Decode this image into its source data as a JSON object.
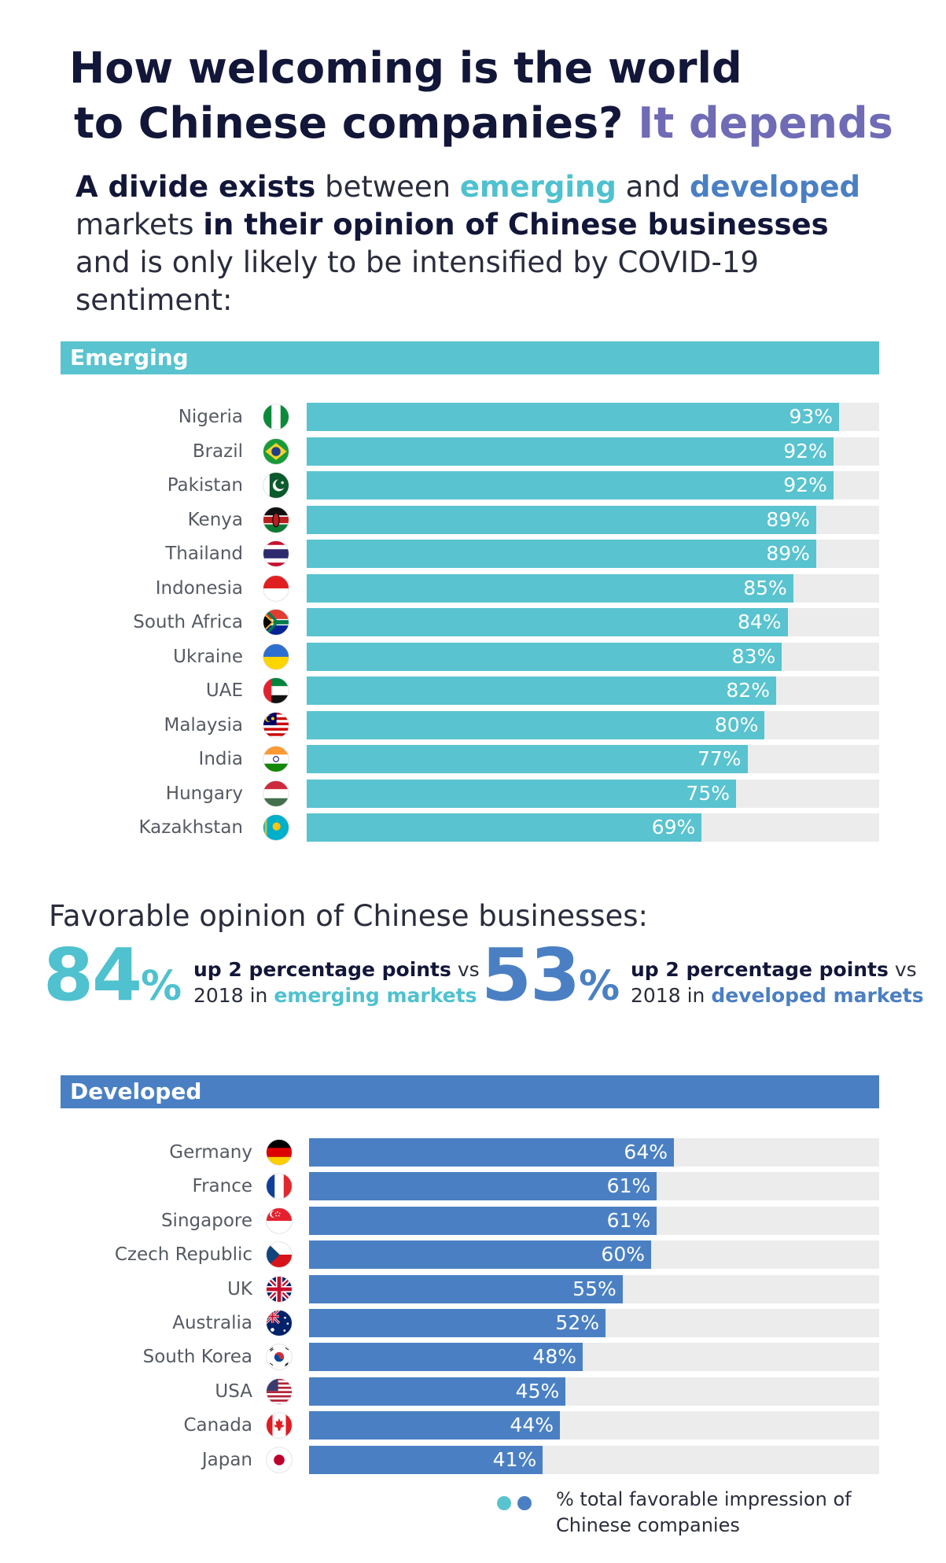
{
  "title": {
    "line1": "How welcoming is the world",
    "line2": "to Chinese companies?",
    "accent": "It depends"
  },
  "intro": {
    "p1_bold": "A divide exists",
    "p1_text": " between ",
    "emerging": "emerging",
    "and": " and ",
    "developed": "developed",
    "p2_text": "markets ",
    "p2_bold": "in their opinion of Chinese businesses",
    "p3_text": "and is only likely to be intensified by COVID-19",
    "p4_text": "sentiment:"
  },
  "sections": {
    "emerging_label": "Emerging",
    "developed_label": "Developed"
  },
  "favorable": {
    "title": "Favorable opinion of Chinese businesses:",
    "emerging": {
      "value": "84",
      "unit": "%",
      "bold": "up 2 percentage points",
      "vs": " vs",
      "line2": "2018 in ",
      "market": "emerging markets"
    },
    "developed": {
      "value": "53",
      "unit": "%",
      "bold": "up 2 percentage points",
      "vs": " vs",
      "line2": "2018 in ",
      "market": "developed markets"
    }
  },
  "legend": {
    "text": "% total favorable impression of Chinese companies"
  },
  "colors": {
    "emerging": "#59c3cf",
    "developed": "#4a80c3",
    "track": "#ececec",
    "title": "#121638",
    "accent": "#6f6bb5"
  },
  "chart_data": [
    {
      "type": "bar",
      "title": "Emerging",
      "categories": [
        "Nigeria",
        "Brazil",
        "Pakistan",
        "Kenya",
        "Thailand",
        "Indonesia",
        "South Africa",
        "Ukraine",
        "UAE",
        "Malaysia",
        "India",
        "Hungary",
        "Kazakhstan"
      ],
      "values": [
        93,
        92,
        92,
        89,
        89,
        85,
        84,
        83,
        82,
        80,
        77,
        75,
        69
      ],
      "labels": [
        "93%",
        "92%",
        "92%",
        "89%",
        "89%",
        "85%",
        "84%",
        "83%",
        "82%",
        "80%",
        "77%",
        "75%",
        "69%"
      ],
      "flag_icons": [
        "nigeria-flag-icon",
        "brazil-flag-icon",
        "pakistan-flag-icon",
        "kenya-flag-icon",
        "thailand-flag-icon",
        "indonesia-flag-icon",
        "south-africa-flag-icon",
        "ukraine-flag-icon",
        "uae-flag-icon",
        "malaysia-flag-icon",
        "india-flag-icon",
        "hungary-flag-icon",
        "kazakhstan-flag-icon"
      ],
      "xlim": [
        0,
        100
      ],
      "orientation": "horizontal"
    },
    {
      "type": "bar",
      "title": "Developed",
      "categories": [
        "Germany",
        "France",
        "Singapore",
        "Czech Republic",
        "UK",
        "Australia",
        "South Korea",
        "USA",
        "Canada",
        "Japan"
      ],
      "values": [
        64,
        61,
        61,
        60,
        55,
        52,
        48,
        45,
        44,
        41
      ],
      "labels": [
        "64%",
        "61%",
        "61%",
        "60%",
        "55%",
        "52%",
        "48%",
        "45%",
        "44%",
        "41%"
      ],
      "flag_icons": [
        "germany-flag-icon",
        "france-flag-icon",
        "singapore-flag-icon",
        "czech-republic-flag-icon",
        "uk-flag-icon",
        "australia-flag-icon",
        "south-korea-flag-icon",
        "usa-flag-icon",
        "canada-flag-icon",
        "japan-flag-icon"
      ],
      "xlim": [
        0,
        100
      ],
      "orientation": "horizontal"
    }
  ]
}
